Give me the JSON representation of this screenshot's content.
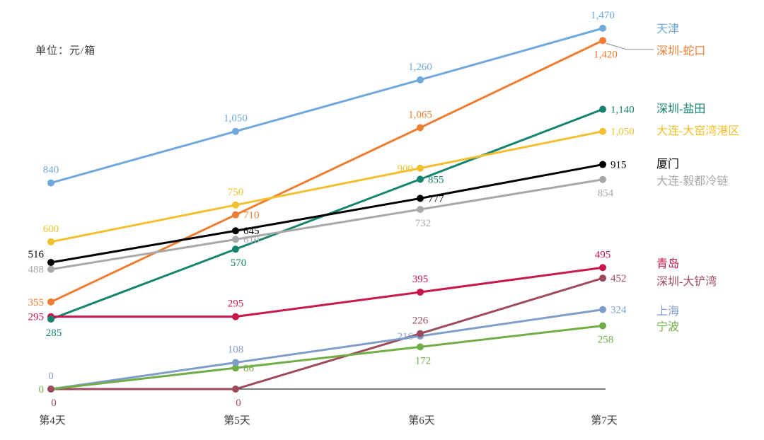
{
  "unit_label": "单位：元/箱",
  "chart_data": {
    "type": "line",
    "title": "",
    "xlabel": "",
    "ylabel": "单位：元/箱",
    "categories": [
      "第4天",
      "第5天",
      "第6天",
      "第7天"
    ],
    "ylim": [
      0,
      1470
    ],
    "grid": false,
    "legend_position": "right",
    "series": [
      {
        "name": "天津",
        "color": "#6FA8DC",
        "values": [
          840,
          1050,
          1260,
          1470
        ],
        "label_positions": [
          "above",
          "above",
          "above",
          "above"
        ]
      },
      {
        "name": "深圳-蛇口",
        "color": "#ED7D31",
        "values": [
          355,
          710,
          1065,
          1420
        ],
        "label_positions": [
          "left",
          "right",
          "above",
          "below"
        ],
        "leader_line": true
      },
      {
        "name": "深圳-盐田",
        "color": "#15836F",
        "values": [
          285,
          570,
          855,
          1140
        ],
        "label_positions": [
          "below",
          "below",
          "right",
          "right"
        ]
      },
      {
        "name": "大连-大窑湾港区",
        "color": "#F0C02E",
        "values": [
          600,
          750,
          900,
          1050
        ],
        "label_positions": [
          "above",
          "above",
          "left",
          "right"
        ]
      },
      {
        "name": "厦门",
        "color": "#000000",
        "values": [
          516,
          645,
          777,
          915
        ],
        "label_positions": [
          "left-up",
          "right",
          "right",
          "right"
        ]
      },
      {
        "name": "大连-毅都冷链",
        "color": "#A8A8A8",
        "values": [
          488,
          610,
          732,
          854
        ],
        "label_positions": [
          "left",
          "right",
          "below",
          "below"
        ]
      },
      {
        "name": "青岛",
        "color": "#C9174B",
        "values": [
          295,
          295,
          395,
          495
        ],
        "label_positions": [
          "left",
          "above",
          "above",
          "above"
        ]
      },
      {
        "name": "深圳-大铲湾",
        "color": "#9C4A5C",
        "values": [
          0,
          0,
          226,
          452
        ],
        "label_positions": [
          "below",
          "below",
          "above",
          "right"
        ]
      },
      {
        "name": "上海",
        "color": "#7F9DC9",
        "values": [
          0,
          108,
          216,
          324
        ],
        "label_positions": [
          "above",
          "above",
          "left",
          "right"
        ]
      },
      {
        "name": "宁波",
        "color": "#71AD47",
        "values": [
          0,
          86,
          172,
          258
        ],
        "label_positions": [
          "left",
          "right",
          "below",
          "below"
        ]
      }
    ]
  }
}
